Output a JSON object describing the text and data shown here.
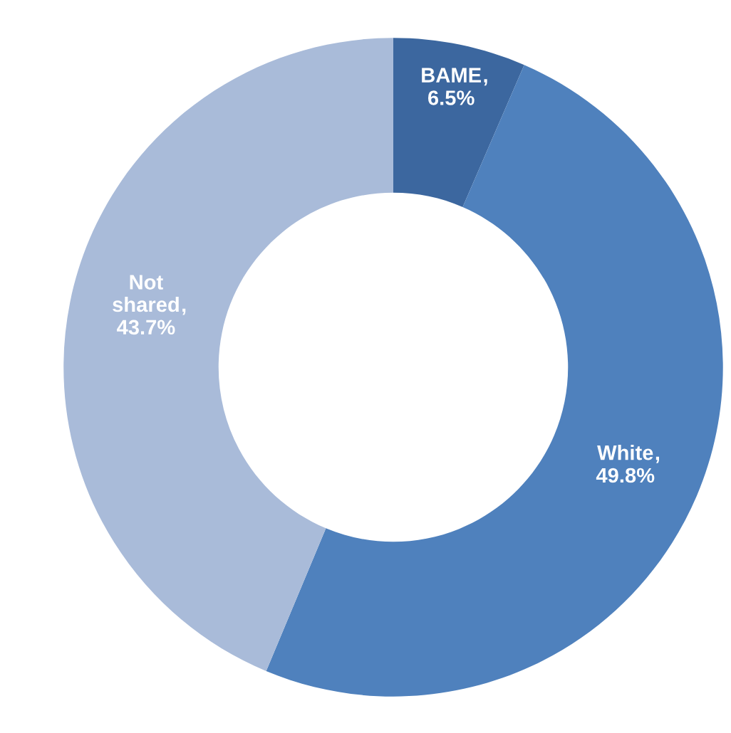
{
  "chart_data": {
    "type": "donut",
    "categories": [
      "BAME",
      "White",
      "Not\nshared"
    ],
    "values": [
      6.5,
      49.8,
      43.7
    ],
    "value_labels": [
      "6.5%",
      "49.8%",
      "43.7%"
    ],
    "annotations": [
      ",",
      ",",
      ","
    ],
    "colors": [
      "#3c679f",
      "#4f81bd",
      "#a9bbd9"
    ]
  }
}
